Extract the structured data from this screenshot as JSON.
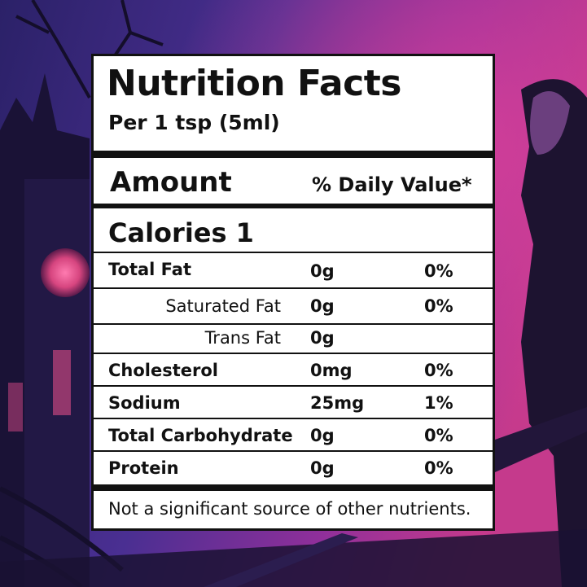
{
  "label": {
    "title": "Nutrition Facts",
    "serving": "Per 1 tsp (5ml)",
    "amount_header": "Amount",
    "daily_value_header": "% Daily Value*",
    "calories": "Calories 1",
    "nutrients": [
      {
        "name": "Total Fat",
        "amount": "0g",
        "percent": "0%"
      },
      {
        "name": "Saturated Fat",
        "amount": "0g",
        "percent": "0%"
      },
      {
        "name": "Trans Fat",
        "amount": "0g",
        "percent": ""
      },
      {
        "name": "Cholesterol",
        "amount": "0mg",
        "percent": "0%"
      },
      {
        "name": "Sodium",
        "amount": "25mg",
        "percent": "1%"
      },
      {
        "name": "Total Carbohydrate",
        "amount": "0g",
        "percent": "0%"
      },
      {
        "name": "Protein",
        "amount": "0g",
        "percent": "0%"
      }
    ],
    "footer": "Not a significant source of other nutrients."
  },
  "colors": {
    "background_dark": "#1b1440",
    "background_purple": "#4b2f8f",
    "background_magenta": "#b0338f",
    "label_bg": "#ffffff",
    "label_ink": "#111111"
  }
}
